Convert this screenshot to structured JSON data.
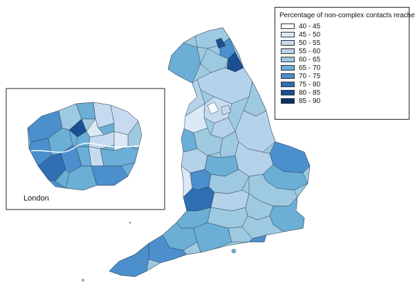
{
  "map": {
    "inset_label": "London",
    "colors": {
      "c40": "#f7fbff",
      "c45": "#dbe9f6",
      "c50": "#c6dbef",
      "c55": "#b5d2eb",
      "c60": "#9ecae1",
      "c65": "#6baed6",
      "c70": "#4b8fcc",
      "c75": "#2f6fb4",
      "c80": "#1b4f93",
      "c85": "#0b2f6b"
    }
  },
  "legend": {
    "title": "Percentage of non-complex contacts reached",
    "items": [
      {
        "label": "40 - 45",
        "color": "#f7fbff"
      },
      {
        "label": "45 - 50",
        "color": "#dbe9f6"
      },
      {
        "label": "50 - 55",
        "color": "#c6dbef"
      },
      {
        "label": "55 - 60",
        "color": "#b5d2eb"
      },
      {
        "label": "60 - 65",
        "color": "#9ecae1"
      },
      {
        "label": "65 - 70",
        "color": "#6baed6"
      },
      {
        "label": "70 - 75",
        "color": "#4b8fcc"
      },
      {
        "label": "75 - 80",
        "color": "#2f6fb4"
      },
      {
        "label": "80 - 85",
        "color": "#1b4f93"
      },
      {
        "label": "85 - 90",
        "color": "#0b2f6b"
      }
    ]
  }
}
